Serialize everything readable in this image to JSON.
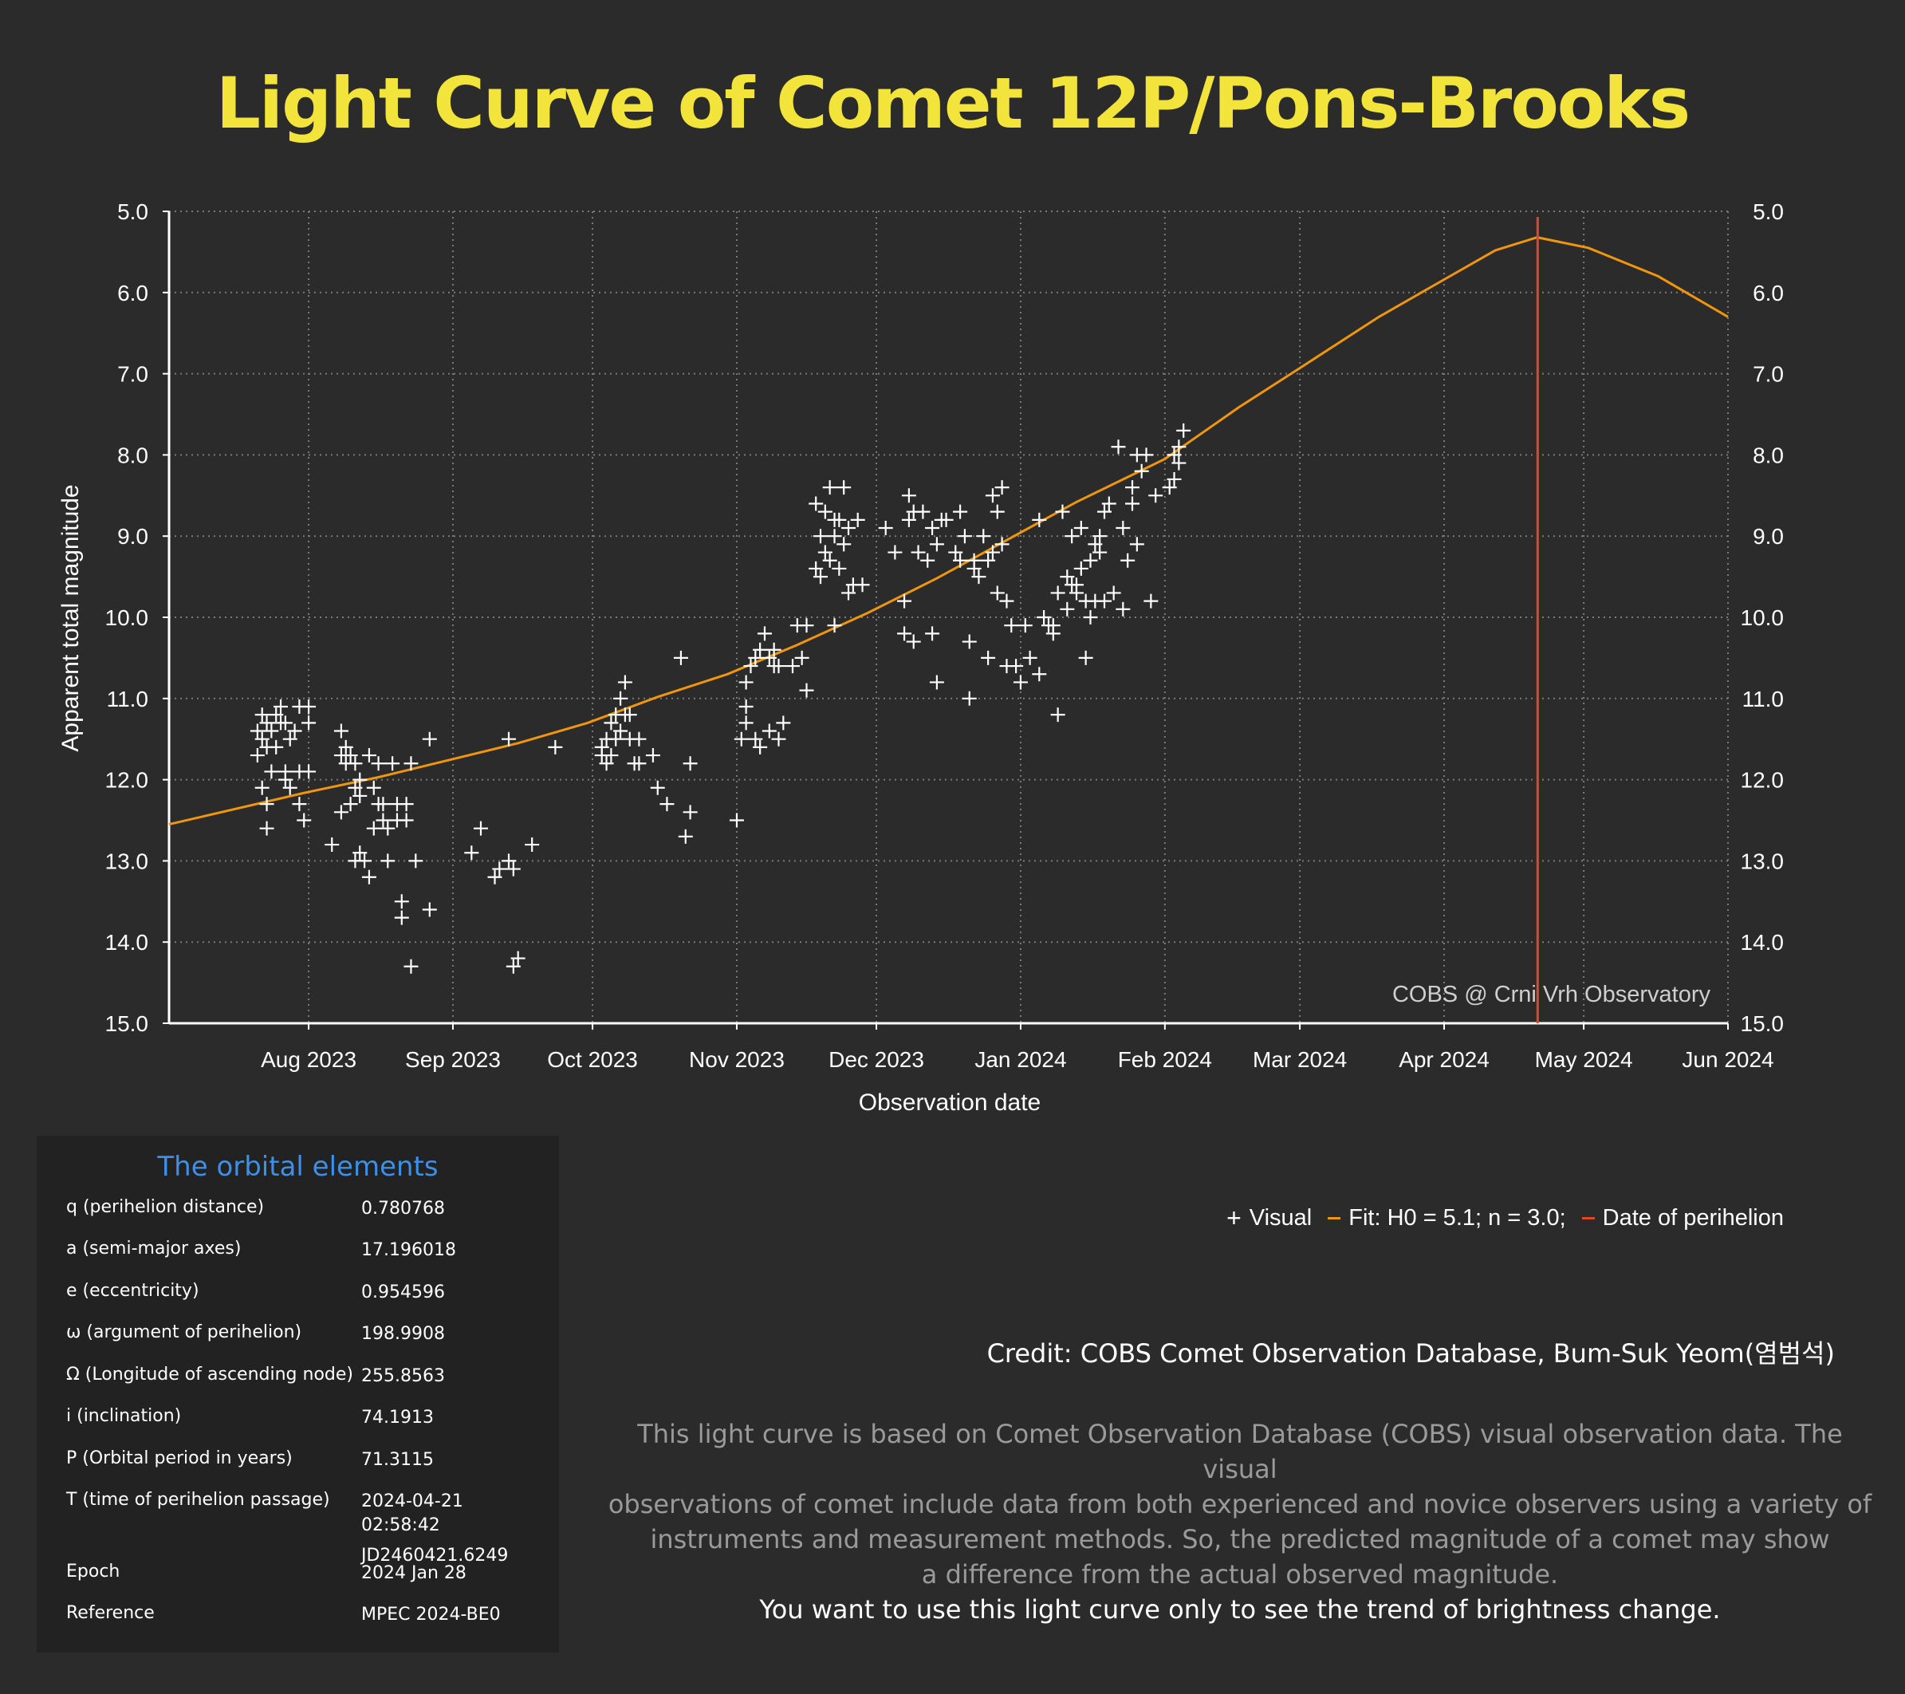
{
  "title": "Light Curve of Comet 12P/Pons-Brooks",
  "chart_data": {
    "type": "scatter",
    "title": "Light Curve of Comet 12P/Pons-Brooks",
    "xlabel": "Observation date",
    "ylabel": "Apparent total magnitude",
    "ylim": [
      15.0,
      5.0
    ],
    "y_inverted": true,
    "x_domain_days_from_2023-08-01": [
      -30,
      305
    ],
    "x_ticks": [
      {
        "label": "Aug 2023",
        "day": 0
      },
      {
        "label": "Sep 2023",
        "day": 31
      },
      {
        "label": "Oct 2023",
        "day": 61
      },
      {
        "label": "Nov 2023",
        "day": 92
      },
      {
        "label": "Dec 2023",
        "day": 122
      },
      {
        "label": "Jan 2024",
        "day": 153
      },
      {
        "label": "Feb 2024",
        "day": 184
      },
      {
        "label": "Mar 2024",
        "day": 213
      },
      {
        "label": "Apr 2024",
        "day": 244
      },
      {
        "label": "May 2024",
        "day": 274
      },
      {
        "label": "Jun 2024",
        "day": 305
      }
    ],
    "y_ticks": [
      "5.0",
      "6.0",
      "7.0",
      "8.0",
      "9.0",
      "10.0",
      "11.0",
      "12.0",
      "13.0",
      "14.0",
      "15.0"
    ],
    "grid": true,
    "legend_position": "bottom-right, below chart",
    "watermark": "COBS @ Crni Vrh Observatory",
    "perihelion_day": 264.1,
    "series": [
      {
        "name": "Visual",
        "marker": "plus",
        "color": "#ffffff",
        "points": [
          [
            -11,
            11.7
          ],
          [
            -11,
            11.4
          ],
          [
            -10,
            11.2
          ],
          [
            -10,
            11.5
          ],
          [
            -9,
            11.3
          ],
          [
            -9,
            11.6
          ],
          [
            -10,
            12.1
          ],
          [
            -9,
            12.3
          ],
          [
            -9,
            12.6
          ],
          [
            -8,
            11.9
          ],
          [
            -8,
            11.4
          ],
          [
            -7,
            11.2
          ],
          [
            -7,
            11.6
          ],
          [
            -6,
            11.3
          ],
          [
            -6,
            11.1
          ],
          [
            -5,
            11.9
          ],
          [
            -5,
            12.0
          ],
          [
            -5,
            11.3
          ],
          [
            -4,
            12.1
          ],
          [
            -4,
            11.5
          ],
          [
            -3,
            11.4
          ],
          [
            -2,
            11.1
          ],
          [
            -2,
            11.9
          ],
          [
            -2,
            12.3
          ],
          [
            -1,
            12.5
          ],
          [
            0,
            11.3
          ],
          [
            0,
            11.1
          ],
          [
            0,
            11.9
          ],
          [
            5,
            12.8
          ],
          [
            7,
            12.4
          ],
          [
            7,
            11.4
          ],
          [
            7,
            11.7
          ],
          [
            8,
            11.6
          ],
          [
            8,
            11.8
          ],
          [
            9,
            11.7
          ],
          [
            9,
            12.3
          ],
          [
            10,
            11.8
          ],
          [
            10,
            12.1
          ],
          [
            10,
            13.0
          ],
          [
            11,
            12.0
          ],
          [
            11,
            12.2
          ],
          [
            11,
            12.9
          ],
          [
            12,
            13.0
          ],
          [
            13,
            11.7
          ],
          [
            13,
            13.2
          ],
          [
            14,
            12.1
          ],
          [
            14,
            12.6
          ],
          [
            15,
            11.8
          ],
          [
            15,
            12.3
          ],
          [
            16,
            12.5
          ],
          [
            16,
            12.3
          ],
          [
            17,
            12.6
          ],
          [
            17,
            13.0
          ],
          [
            18,
            11.8
          ],
          [
            19,
            12.5
          ],
          [
            19,
            12.3
          ],
          [
            20,
            13.5
          ],
          [
            20,
            13.7
          ],
          [
            21,
            12.5
          ],
          [
            21,
            12.3
          ],
          [
            22,
            11.8
          ],
          [
            22,
            14.3
          ],
          [
            23,
            13.0
          ],
          [
            26,
            11.5
          ],
          [
            26,
            13.6
          ],
          [
            35,
            12.9
          ],
          [
            37,
            12.6
          ],
          [
            40,
            13.2
          ],
          [
            41,
            13.1
          ],
          [
            43,
            13.0
          ],
          [
            43,
            11.5
          ],
          [
            44,
            14.3
          ],
          [
            44,
            13.1
          ],
          [
            45,
            14.2
          ],
          [
            48,
            12.8
          ],
          [
            53,
            11.6
          ],
          [
            63,
            11.7
          ],
          [
            63,
            11.6
          ],
          [
            64,
            11.8
          ],
          [
            64,
            11.5
          ],
          [
            65,
            11.3
          ],
          [
            65,
            11.7
          ],
          [
            66,
            11.2
          ],
          [
            66,
            11.5
          ],
          [
            67,
            11.4
          ],
          [
            67,
            11.0
          ],
          [
            68,
            10.8
          ],
          [
            68,
            11.2
          ],
          [
            69,
            11.5
          ],
          [
            69,
            11.2
          ],
          [
            70,
            11.8
          ],
          [
            71,
            11.8
          ],
          [
            71,
            11.5
          ],
          [
            74,
            11.7
          ],
          [
            75,
            12.1
          ],
          [
            77,
            12.3
          ],
          [
            80,
            10.5
          ],
          [
            81,
            12.7
          ],
          [
            82,
            11.8
          ],
          [
            82,
            12.4
          ],
          [
            92,
            12.5
          ],
          [
            93,
            11.5
          ],
          [
            94,
            11.3
          ],
          [
            94,
            10.8
          ],
          [
            94,
            11.1
          ],
          [
            95,
            10.6
          ],
          [
            96,
            11.5
          ],
          [
            96,
            10.5
          ],
          [
            97,
            11.6
          ],
          [
            97,
            10.4
          ],
          [
            98,
            10.2
          ],
          [
            99,
            10.5
          ],
          [
            99,
            11.4
          ],
          [
            100,
            10.4
          ],
          [
            100,
            10.6
          ],
          [
            101,
            11.5
          ],
          [
            101,
            10.6
          ],
          [
            102,
            11.3
          ],
          [
            104,
            10.6
          ],
          [
            105,
            10.1
          ],
          [
            106,
            10.5
          ],
          [
            107,
            10.9
          ],
          [
            107,
            10.1
          ],
          [
            109,
            9.4
          ],
          [
            109,
            8.6
          ],
          [
            110,
            9.0
          ],
          [
            110,
            9.5
          ],
          [
            111,
            8.7
          ],
          [
            111,
            9.2
          ],
          [
            112,
            9.3
          ],
          [
            112,
            8.4
          ],
          [
            113,
            9.0
          ],
          [
            113,
            8.8
          ],
          [
            113,
            10.1
          ],
          [
            114,
            9.4
          ],
          [
            114,
            8.8
          ],
          [
            115,
            9.1
          ],
          [
            115,
            8.4
          ],
          [
            116,
            9.7
          ],
          [
            116,
            8.9
          ],
          [
            117,
            9.6
          ],
          [
            118,
            8.8
          ],
          [
            119,
            9.6
          ],
          [
            124,
            8.9
          ],
          [
            126,
            9.2
          ],
          [
            128,
            9.8
          ],
          [
            128,
            10.2
          ],
          [
            129,
            8.8
          ],
          [
            129,
            8.5
          ],
          [
            130,
            10.3
          ],
          [
            130,
            8.7
          ],
          [
            131,
            9.2
          ],
          [
            132,
            8.7
          ],
          [
            133,
            9.3
          ],
          [
            134,
            10.2
          ],
          [
            134,
            8.9
          ],
          [
            135,
            10.8
          ],
          [
            135,
            9.1
          ],
          [
            136,
            8.8
          ],
          [
            137,
            8.8
          ],
          [
            139,
            9.2
          ],
          [
            140,
            8.7
          ],
          [
            140,
            9.3
          ],
          [
            141,
            9.0
          ],
          [
            142,
            11.0
          ],
          [
            142,
            10.3
          ],
          [
            143,
            9.3
          ],
          [
            143,
            9.4
          ],
          [
            144,
            9.5
          ],
          [
            145,
            9.0
          ],
          [
            146,
            9.3
          ],
          [
            146,
            10.5
          ],
          [
            147,
            8.5
          ],
          [
            147,
            9.2
          ],
          [
            148,
            8.7
          ],
          [
            148,
            9.7
          ],
          [
            149,
            8.4
          ],
          [
            149,
            9.1
          ],
          [
            150,
            10.6
          ],
          [
            150,
            9.8
          ],
          [
            151,
            10.1
          ],
          [
            152,
            10.6
          ],
          [
            153,
            10.8
          ],
          [
            154,
            10.1
          ],
          [
            155,
            10.5
          ],
          [
            157,
            10.7
          ],
          [
            157,
            8.8
          ],
          [
            158,
            10.0
          ],
          [
            159,
            10.1
          ],
          [
            160,
            10.2
          ],
          [
            160,
            10.1
          ],
          [
            161,
            9.7
          ],
          [
            161,
            11.2
          ],
          [
            162,
            8.7
          ],
          [
            163,
            9.9
          ],
          [
            163,
            9.5
          ],
          [
            164,
            9.0
          ],
          [
            164,
            9.6
          ],
          [
            165,
            9.6
          ],
          [
            165,
            9.7
          ],
          [
            166,
            8.9
          ],
          [
            166,
            9.4
          ],
          [
            167,
            9.8
          ],
          [
            167,
            10.5
          ],
          [
            168,
            9.3
          ],
          [
            168,
            10.0
          ],
          [
            169,
            9.1
          ],
          [
            169,
            9.8
          ],
          [
            170,
            9.0
          ],
          [
            170,
            9.2
          ],
          [
            171,
            8.7
          ],
          [
            171,
            9.8
          ],
          [
            172,
            8.6
          ],
          [
            173,
            9.7
          ],
          [
            174,
            7.9
          ],
          [
            175,
            8.9
          ],
          [
            175,
            9.9
          ],
          [
            176,
            9.3
          ],
          [
            177,
            8.4
          ],
          [
            177,
            8.6
          ],
          [
            178,
            9.1
          ],
          [
            178,
            8.0
          ],
          [
            179,
            8.2
          ],
          [
            180,
            8.0
          ],
          [
            181,
            9.8
          ],
          [
            182,
            8.5
          ],
          [
            185,
            8.4
          ],
          [
            186,
            8.3
          ],
          [
            186,
            8.0
          ],
          [
            187,
            7.9
          ],
          [
            187,
            8.1
          ],
          [
            188,
            7.7
          ]
        ]
      },
      {
        "name": "Fit: H0 = 5.1; n = 3.0;",
        "color": "#f0950e",
        "curve": [
          [
            -30,
            12.55
          ],
          [
            0,
            12.15
          ],
          [
            15,
            11.97
          ],
          [
            30,
            11.76
          ],
          [
            45,
            11.55
          ],
          [
            60,
            11.3
          ],
          [
            75,
            10.98
          ],
          [
            90,
            10.7
          ],
          [
            105,
            10.34
          ],
          [
            120,
            9.95
          ],
          [
            135,
            9.52
          ],
          [
            150,
            9.05
          ],
          [
            165,
            8.58
          ],
          [
            184,
            8.05
          ],
          [
            200,
            7.41
          ],
          [
            213,
            6.93
          ],
          [
            230,
            6.3
          ],
          [
            244,
            5.84
          ],
          [
            255,
            5.48
          ],
          [
            264,
            5.32
          ],
          [
            275,
            5.45
          ],
          [
            290,
            5.8
          ],
          [
            305,
            6.3
          ]
        ]
      },
      {
        "name": "Date of perihelion",
        "color": "#e0452e"
      }
    ]
  },
  "legend": {
    "visual_label": "Visual",
    "fit_label": "Fit: H0 = 5.1; n = 3.0;",
    "perihelion_label": "Date of perihelion"
  },
  "orbital_elements": {
    "title": "The orbital elements",
    "rows": [
      {
        "label": "q (perihelion distance)",
        "value": "0.780768"
      },
      {
        "label": "a (semi-major axes)",
        "value": "17.196018"
      },
      {
        "label": "e (eccentricity)",
        "value": "0.954596"
      },
      {
        "label": "ω (argument of perihelion)",
        "value": "198.9908"
      },
      {
        "label": "Ω (Longitude of ascending node)",
        "value": "255.8563"
      },
      {
        "label": "i (inclination)",
        "value": "74.1913"
      },
      {
        "label": "P (Orbital period in years)",
        "value": "71.3115"
      },
      {
        "label": "T (time of perihelion passage)",
        "value": "2024-04-21 02:58:42",
        "value2": "JD2460421.6249"
      },
      {
        "label": "Epoch",
        "value": "2024 Jan 28"
      },
      {
        "label": "Reference",
        "value": "MPEC 2024-BE0"
      }
    ]
  },
  "credit": "Credit: COBS Comet Observation Database, Bum-Suk Yeom(염범석)",
  "note": {
    "lines": [
      "This light curve is based on Comet Observation Database (COBS) visual observation data. The visual",
      "observations of comet include data from both experienced and novice observers using a variety of",
      "instruments and measurement methods. So, the predicted magnitude of a comet may show",
      "a difference from the actual observed magnitude."
    ],
    "emphasis": "You want to use this light curve only to see the trend of brightness change."
  },
  "colors": {
    "background": "#2b2b2b",
    "title": "#f2e43a",
    "fit": "#f0950e",
    "perihelion": "#e0452e",
    "panel_title": "#3d8fe8"
  }
}
